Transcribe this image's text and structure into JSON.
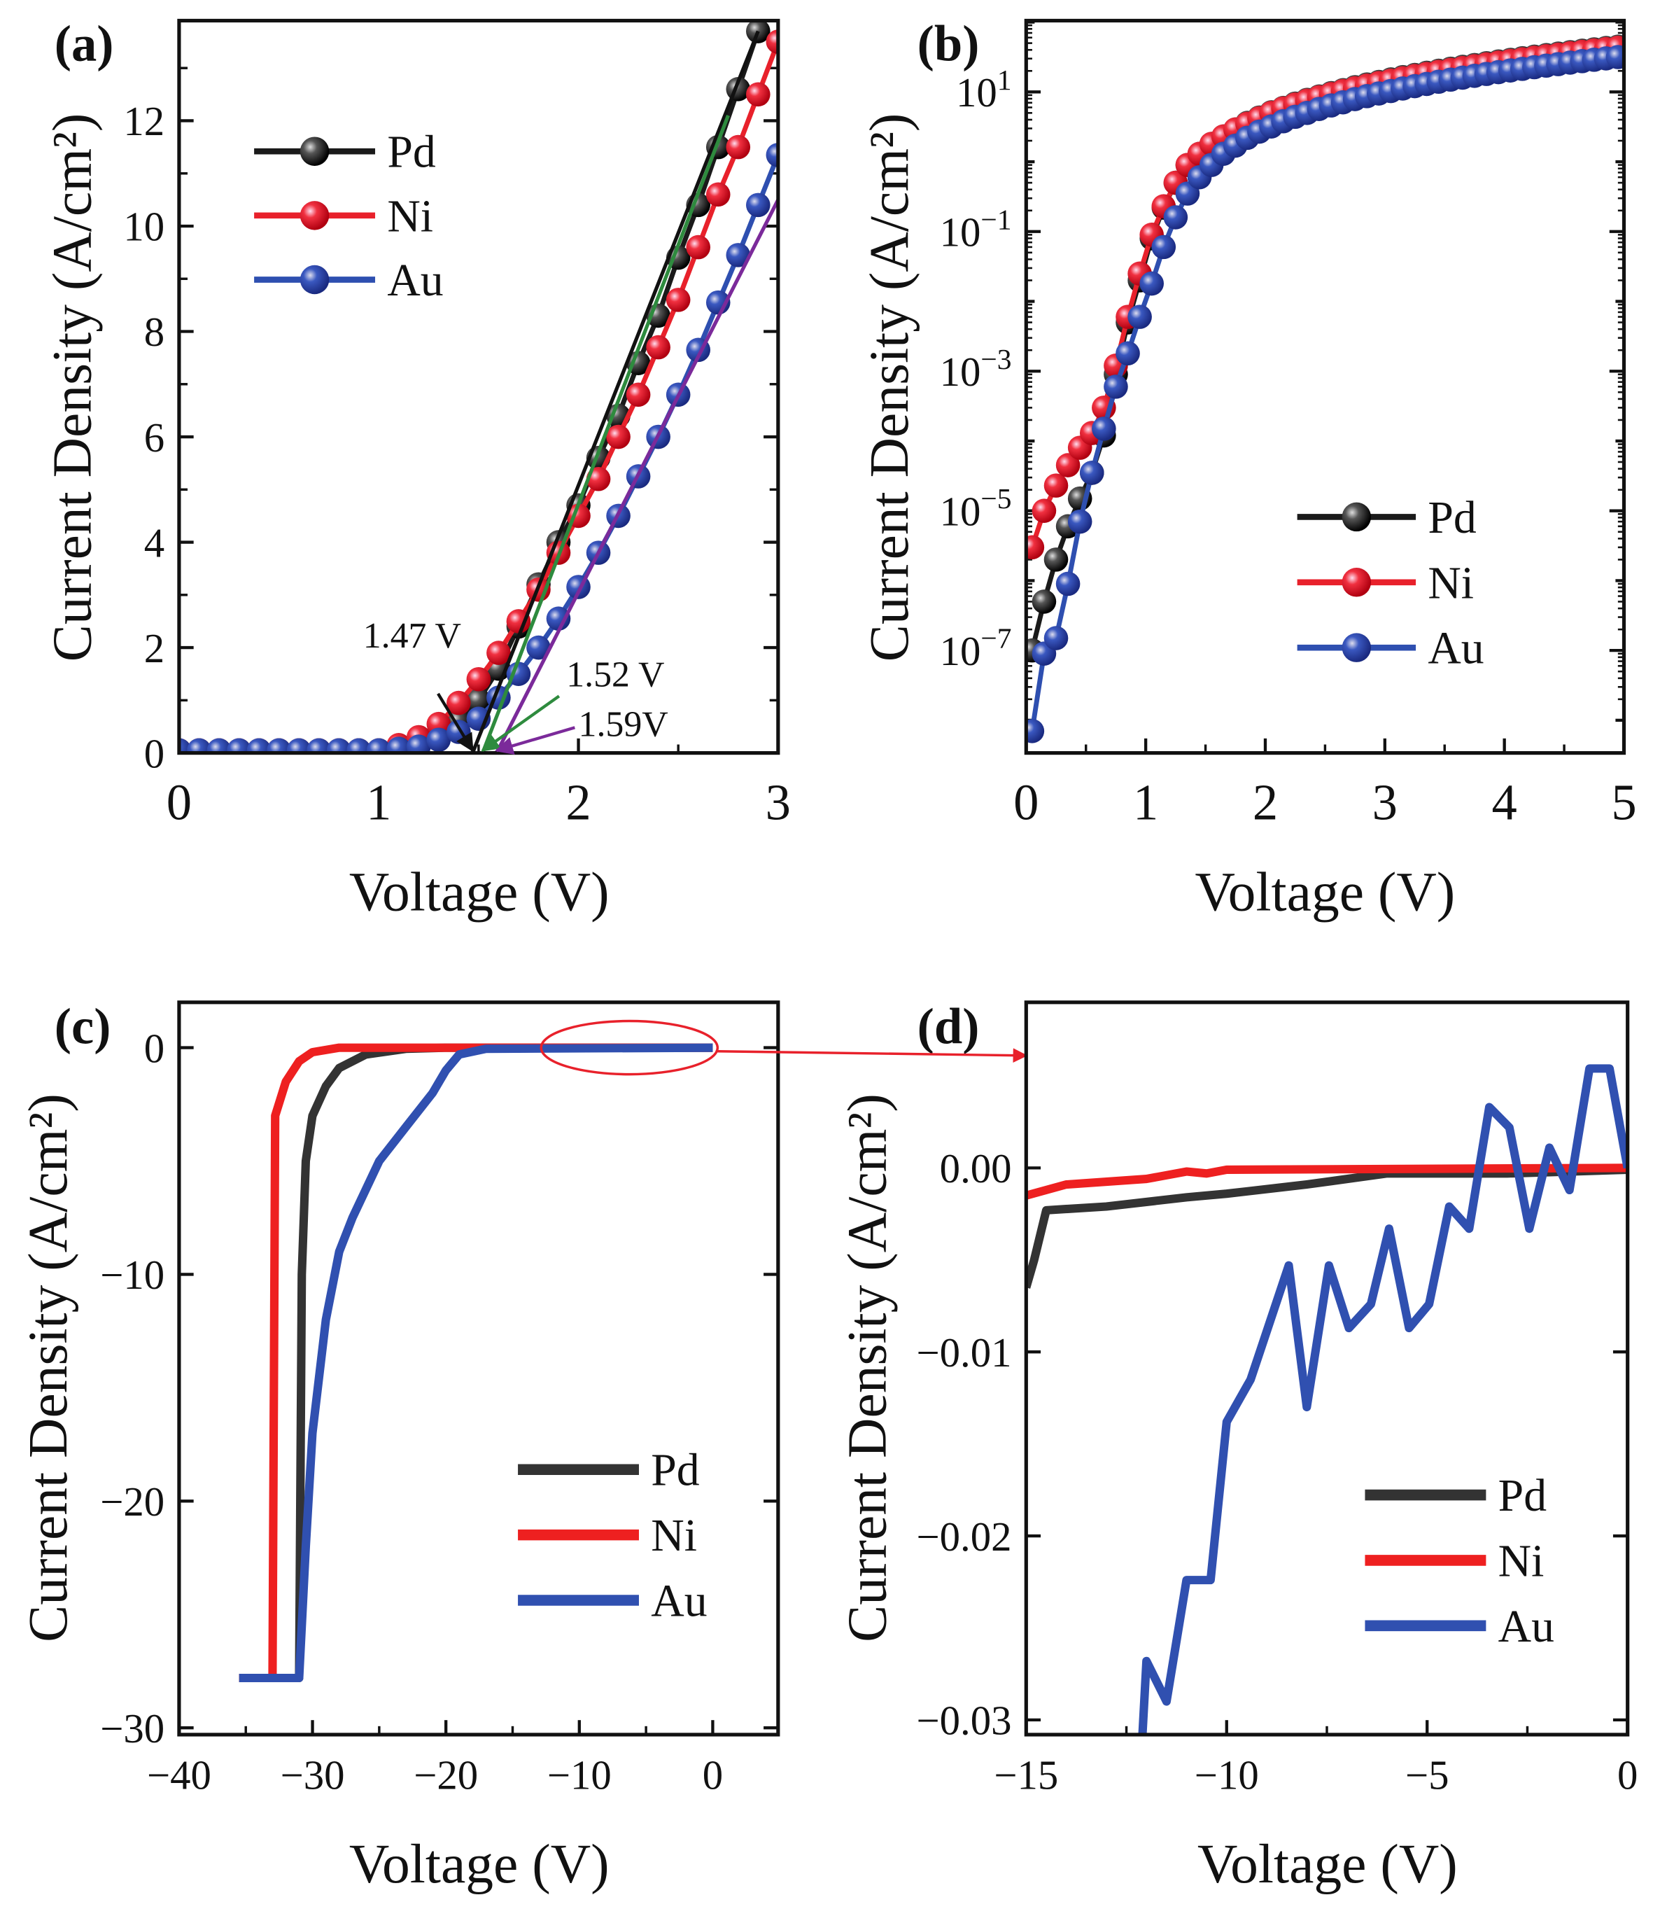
{
  "chart_data": [
    {
      "panel": "(a)",
      "type": "line",
      "scale": "linear",
      "xlabel": "Voltage (V)",
      "ylabel": "Current Density (A/cm²)",
      "xlim": [
        0,
        3
      ],
      "ylim": [
        0,
        13.9
      ],
      "xticks": [
        0,
        1,
        2,
        3
      ],
      "yticks": [
        0,
        2,
        4,
        6,
        8,
        10,
        12
      ],
      "markers": true,
      "legend_position": "top-left",
      "series": [
        {
          "name": "Pd",
          "color": "#1a1a1a",
          "x": [
            0,
            0.1,
            0.2,
            0.3,
            0.4,
            0.5,
            0.6,
            0.7,
            0.8,
            0.9,
            1.0,
            1.1,
            1.2,
            1.3,
            1.4,
            1.5,
            1.6,
            1.7,
            1.8,
            1.9,
            2.0,
            2.1,
            2.2,
            2.3,
            2.4,
            2.5,
            2.6,
            2.7,
            2.8,
            2.9
          ],
          "y": [
            0.05,
            0.05,
            0.05,
            0.05,
            0.05,
            0.05,
            0.05,
            0.05,
            0.05,
            0.05,
            0.05,
            0.1,
            0.15,
            0.35,
            0.6,
            1.0,
            1.6,
            2.4,
            3.2,
            4.0,
            4.7,
            5.6,
            6.4,
            7.4,
            8.3,
            9.4,
            10.4,
            11.5,
            12.6,
            13.7
          ]
        },
        {
          "name": "Ni",
          "color": "#e8212b",
          "x": [
            0,
            0.1,
            0.2,
            0.3,
            0.4,
            0.5,
            0.6,
            0.7,
            0.8,
            0.9,
            1.0,
            1.1,
            1.2,
            1.3,
            1.4,
            1.5,
            1.6,
            1.7,
            1.8,
            1.9,
            2.0,
            2.1,
            2.2,
            2.3,
            2.4,
            2.5,
            2.6,
            2.7,
            2.8,
            2.9,
            3.0
          ],
          "y": [
            0.05,
            0.05,
            0.05,
            0.05,
            0.05,
            0.05,
            0.05,
            0.05,
            0.05,
            0.05,
            0.05,
            0.15,
            0.3,
            0.55,
            0.95,
            1.4,
            1.9,
            2.5,
            3.1,
            3.8,
            4.5,
            5.2,
            6.0,
            6.8,
            7.7,
            8.6,
            9.6,
            10.6,
            11.5,
            12.5,
            13.5
          ]
        },
        {
          "name": "Au",
          "color": "#2e4fb0",
          "x": [
            0,
            0.1,
            0.2,
            0.3,
            0.4,
            0.5,
            0.6,
            0.7,
            0.8,
            0.9,
            1.0,
            1.1,
            1.2,
            1.3,
            1.4,
            1.5,
            1.6,
            1.7,
            1.8,
            1.9,
            2.0,
            2.1,
            2.2,
            2.3,
            2.4,
            2.5,
            2.6,
            2.7,
            2.8,
            2.9,
            3.0
          ],
          "y": [
            0.05,
            0.05,
            0.05,
            0.05,
            0.05,
            0.05,
            0.05,
            0.05,
            0.05,
            0.05,
            0.05,
            0.08,
            0.12,
            0.25,
            0.4,
            0.65,
            1.05,
            1.5,
            2.0,
            2.55,
            3.15,
            3.8,
            4.5,
            5.25,
            6.0,
            6.8,
            7.65,
            8.55,
            9.45,
            10.4,
            11.35
          ]
        }
      ],
      "fit_lines": [
        {
          "color": "#111111",
          "x": [
            1.47,
            2.9
          ],
          "y": [
            0,
            13.7
          ]
        },
        {
          "color": "#2e8b3e",
          "x": [
            1.52,
            2.75
          ],
          "y": [
            0,
            12.1
          ]
        },
        {
          "color": "#7b2a9a",
          "x": [
            1.59,
            3.0
          ],
          "y": [
            0,
            10.5
          ]
        }
      ],
      "annotations": [
        {
          "text": "1.47 V",
          "color": "#111111",
          "x": 1.47
        },
        {
          "text": "1.52 V",
          "color": "#2e8b3e",
          "x": 1.52
        },
        {
          "text": "1.59V",
          "color": "#7b2a9a",
          "x": 1.59
        }
      ]
    },
    {
      "panel": "(b)",
      "type": "line",
      "scale": "log",
      "xlabel": "Voltage (V)",
      "ylabel": "Current Density (A/cm²)",
      "xlim": [
        0,
        5
      ],
      "ylim": [
        3.4e-09,
        105
      ],
      "xticks": [
        0,
        1,
        2,
        3,
        4,
        5
      ],
      "ytick_base": "10",
      "ytick_exponents": [
        1,
        -1,
        -3,
        -5,
        -7
      ],
      "markers": true,
      "legend_position": "bottom-right",
      "series": [
        {
          "name": "Pd",
          "color": "#1a1a1a",
          "x": [
            0.05,
            0.15,
            0.25,
            0.35,
            0.45,
            0.55,
            0.65,
            0.75,
            0.85,
            0.95,
            1.05,
            1.15,
            1.25,
            1.35,
            1.45,
            1.55,
            1.65,
            1.75,
            1.85,
            1.95,
            2.05,
            2.15,
            2.25,
            2.35,
            2.45,
            2.55,
            2.65,
            2.75,
            2.85,
            2.95,
            3.05,
            3.15,
            3.25,
            3.35,
            3.45,
            3.55,
            3.65,
            3.75,
            3.85,
            3.95,
            4.05,
            4.15,
            4.25,
            4.35,
            4.45,
            4.55,
            4.65,
            4.75,
            4.85,
            4.95
          ],
          "y": [
            1e-07,
            5e-07,
            2e-06,
            6e-06,
            1.5e-05,
            3.5e-05,
            0.00012,
            0.0009,
            0.005,
            0.02,
            0.08,
            0.22,
            0.5,
            0.9,
            1.3,
            1.8,
            2.3,
            2.9,
            3.6,
            4.3,
            5.1,
            5.9,
            6.8,
            7.7,
            8.6,
            9.6,
            10.6,
            11.7,
            12.8,
            13.9,
            15.1,
            16.3,
            17.5,
            18.8,
            20.1,
            21.5,
            22.9,
            24.3,
            25.8,
            27.3,
            28.8,
            30.4,
            32.0,
            33.7,
            35.4,
            37.1,
            38.9,
            40.7,
            42.6,
            44.5
          ]
        },
        {
          "name": "Ni",
          "color": "#e8212b",
          "x": [
            0.05,
            0.15,
            0.25,
            0.35,
            0.45,
            0.55,
            0.65,
            0.75,
            0.85,
            0.95,
            1.05,
            1.15,
            1.25,
            1.35,
            1.45,
            1.55,
            1.65,
            1.75,
            1.85,
            1.95,
            2.05,
            2.15,
            2.25,
            2.35,
            2.45,
            2.55,
            2.65,
            2.75,
            2.85,
            2.95,
            3.05,
            3.15,
            3.25,
            3.35,
            3.45,
            3.55,
            3.65,
            3.75,
            3.85,
            3.95,
            4.05,
            4.15,
            4.25,
            4.35,
            4.45,
            4.55,
            4.65,
            4.75,
            4.85,
            4.95
          ],
          "y": [
            3e-06,
            1e-05,
            2.3e-05,
            4.5e-05,
            8e-05,
            0.00013,
            0.0003,
            0.0012,
            0.006,
            0.025,
            0.09,
            0.23,
            0.5,
            0.9,
            1.3,
            1.8,
            2.3,
            2.9,
            3.5,
            4.2,
            5.0,
            5.8,
            6.6,
            7.5,
            8.4,
            9.3,
            10.3,
            11.3,
            12.3,
            13.4,
            14.5,
            15.7,
            16.9,
            18.1,
            19.4,
            20.7,
            22.0,
            23.4,
            24.8,
            26.3,
            27.8,
            29.3,
            30.9,
            32.5,
            34.1,
            35.8,
            37.5,
            39.3,
            41.1,
            43.0
          ]
        },
        {
          "name": "Au",
          "color": "#2e4fb0",
          "x": [
            0.05,
            0.15,
            0.25,
            0.35,
            0.45,
            0.55,
            0.65,
            0.75,
            0.85,
            0.95,
            1.05,
            1.15,
            1.25,
            1.35,
            1.45,
            1.55,
            1.65,
            1.75,
            1.85,
            1.95,
            2.05,
            2.15,
            2.25,
            2.35,
            2.45,
            2.55,
            2.65,
            2.75,
            2.85,
            2.95,
            3.05,
            3.15,
            3.25,
            3.35,
            3.45,
            3.55,
            3.65,
            3.75,
            3.85,
            3.95,
            4.05,
            4.15,
            4.25,
            4.35,
            4.45,
            4.55,
            4.65,
            4.75,
            4.85,
            4.95
          ],
          "y": [
            7e-09,
            9e-08,
            1.5e-07,
            9e-07,
            7e-06,
            3.5e-05,
            0.00015,
            0.0006,
            0.0018,
            0.006,
            0.018,
            0.06,
            0.16,
            0.35,
            0.6,
            0.9,
            1.3,
            1.7,
            2.2,
            2.7,
            3.2,
            3.8,
            4.4,
            5.0,
            5.7,
            6.4,
            7.1,
            7.9,
            8.7,
            9.5,
            10.3,
            11.2,
            12.1,
            13.0,
            14.0,
            15.0,
            16.0,
            17.0,
            18.1,
            19.2,
            20.3,
            21.4,
            22.6,
            23.8,
            25.0,
            26.3,
            27.6,
            28.9,
            30.2,
            31.6
          ]
        }
      ]
    },
    {
      "panel": "(c)",
      "type": "line",
      "scale": "linear",
      "xlabel": "Voltage (V)",
      "ylabel": "Current Density (A/cm²)",
      "xlim": [
        -40,
        4.9
      ],
      "ylim": [
        -30.3,
        2.0
      ],
      "xticks": [
        -40,
        -30,
        -20,
        -10,
        0
      ],
      "yticks": [
        0,
        -10,
        -20,
        -30
      ],
      "markers": false,
      "legend_position": "bottom-right",
      "series": [
        {
          "name": "Pd",
          "color": "#333333",
          "x": [
            -35.5,
            -31,
            -30.8,
            -30.5,
            -30,
            -29,
            -28,
            -26,
            -23,
            -20,
            0
          ],
          "y": [
            -27.8,
            -27.8,
            -10,
            -5,
            -3,
            -1.7,
            -0.9,
            -0.3,
            -0.05,
            0,
            0
          ]
        },
        {
          "name": "Ni",
          "color": "#ee2020",
          "x": [
            -35.5,
            -33,
            -32.8,
            -32,
            -31,
            -30,
            -28,
            0
          ],
          "y": [
            -27.8,
            -27.8,
            -3,
            -1.5,
            -0.6,
            -0.2,
            0,
            0
          ]
        },
        {
          "name": "Au",
          "color": "#3050b0",
          "x": [
            -35.5,
            -31,
            -30.5,
            -30,
            -29,
            -28,
            -27,
            -25,
            -23,
            -21,
            -20,
            -19,
            -17,
            0
          ],
          "y": [
            -27.8,
            -27.8,
            -22,
            -17,
            -12,
            -9,
            -7.5,
            -5,
            -3.5,
            -2,
            -1,
            -0.3,
            -0.05,
            0
          ]
        }
      ],
      "highlight": {
        "x_range": [
          -12.5,
          0
        ],
        "color": "#e8212b",
        "points_to": "(d)"
      }
    },
    {
      "panel": "(d)",
      "type": "line",
      "scale": "linear",
      "xlabel": "Voltage (V)",
      "ylabel": "Current Density (A/cm²)",
      "xlim": [
        -15,
        0
      ],
      "ylim": [
        -0.0308,
        0.009
      ],
      "xticks": [
        -15,
        -10,
        -5,
        0
      ],
      "yticks": [
        0.0,
        -0.01,
        -0.02,
        -0.03
      ],
      "ytick_labels": [
        "0.00",
        "−0.01",
        "−0.02",
        "−0.03"
      ],
      "markers": false,
      "legend_position": "bottom-right",
      "series": [
        {
          "name": "Pd",
          "color": "#333333",
          "x": [
            -15,
            -14.8,
            -14.5,
            -13,
            -11,
            -10,
            -8,
            -6,
            -3,
            0
          ],
          "y": [
            -0.0065,
            -0.005,
            -0.0023,
            -0.0021,
            -0.0016,
            -0.0014,
            -0.0009,
            -0.0003,
            -0.0003,
            -0.0001
          ]
        },
        {
          "name": "Ni",
          "color": "#ee2020",
          "x": [
            -15,
            -14,
            -12,
            -11,
            -10.5,
            -10,
            0
          ],
          "y": [
            -0.0015,
            -0.0009,
            -0.0006,
            -0.0002,
            -0.0003,
            -0.0001,
            0
          ]
        },
        {
          "name": "Au",
          "color": "#3050b0",
          "x": [
            -12.1,
            -12.0,
            -11.5,
            -11.0,
            -10.4,
            -10.0,
            -9.4,
            -8.45,
            -8.0,
            -7.45,
            -6.95,
            -6.4,
            -5.95,
            -5.45,
            -4.95,
            -4.45,
            -3.95,
            -3.45,
            -2.95,
            -2.45,
            -1.95,
            -1.45,
            -0.95,
            -0.45,
            0
          ],
          "y": [
            -0.0308,
            -0.0268,
            -0.029,
            -0.0224,
            -0.0224,
            -0.0138,
            -0.0115,
            -0.0053,
            -0.013,
            -0.0053,
            -0.0087,
            -0.0074,
            -0.0033,
            -0.0087,
            -0.0074,
            -0.0021,
            -0.0033,
            0.0033,
            0.0022,
            -0.0033,
            0.0011,
            -0.0012,
            0.0054,
            0.0054,
            0
          ]
        }
      ]
    }
  ]
}
